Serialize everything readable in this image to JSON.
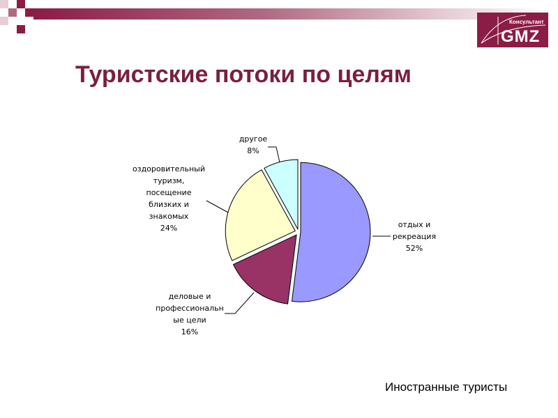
{
  "title": "Туристские потоки по целям",
  "logo": {
    "small_text": "Консультант",
    "big_text": "GMZ"
  },
  "footer": "Иностранные туристы",
  "colors": {
    "accent": "#8b1c45",
    "title": "#7a1f3d"
  },
  "chart_data": {
    "type": "pie",
    "title": "",
    "slices": [
      {
        "label_lines": [
          "отдых и",
          "рекреация"
        ],
        "value_label": "52%",
        "value": 52,
        "color": "#9999ff"
      },
      {
        "label_lines": [
          "деловые и",
          "профессиональн",
          "ые цели"
        ],
        "value_label": "16%",
        "value": 16,
        "color": "#993366"
      },
      {
        "label_lines": [
          "оздоровительный",
          "туризм,",
          "посещение",
          "близких и",
          "знакомых"
        ],
        "value_label": "24%",
        "value": 24,
        "color": "#ffffcc"
      },
      {
        "label_lines": [
          "другое"
        ],
        "value_label": "8%",
        "value": 8,
        "color": "#ccffff"
      }
    ]
  }
}
